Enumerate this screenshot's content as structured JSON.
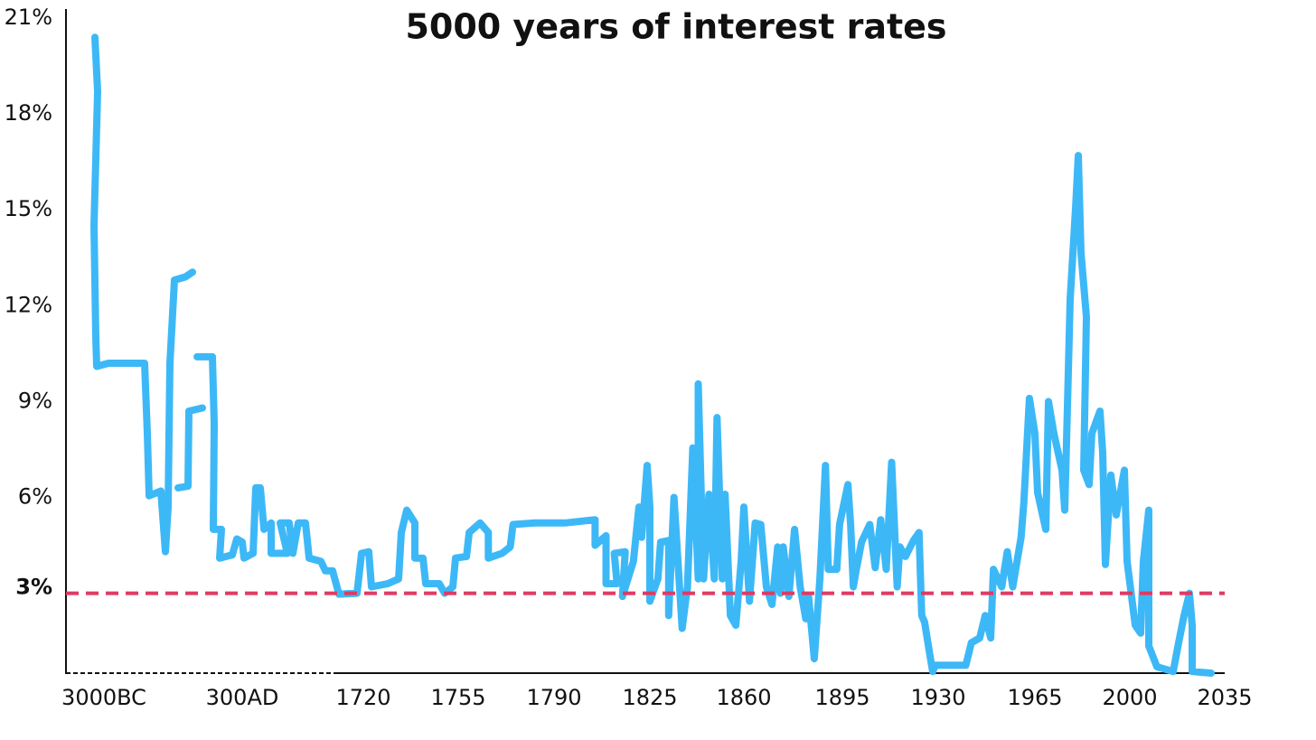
{
  "chart_data": {
    "type": "line",
    "title": "5000 years of interest rates",
    "x": [
      -3216,
      -3151,
      -3237,
      -3194,
      -3173,
      -2892,
      -2029,
      -1964,
      -1921,
      -1641,
      -1533,
      -1469,
      -1425,
      -1318,
      -1059,
      -886,
      null,
      -1231,
      -994,
      -972,
      -649,
      null,
      -778,
      -411,
      -368,
      -390,
      -196,
      -239,
      63,
      171,
      300,
      321,
      427,
      459,
      512,
      555,
      639,
      639,
      830,
      745,
      851,
      893,
      957,
      1042,
      1084,
      1222,
      1275,
      1360,
      1434,
      1646,
      1699,
      1722,
      1723,
      1729,
      1733,
      1734,
      1736,
      1739,
      1739,
      1742,
      1743,
      1748,
      1750,
      1753,
      1754,
      1758,
      1759,
      1763,
      1766,
      1766,
      1771,
      1774,
      1775,
      1783,
      1794,
      1805,
      1805,
      1809,
      1809,
      1813,
      1812,
      1816,
      1815,
      1819,
      1821,
      1822,
      1824,
      1825,
      1825,
      1828,
      1829,
      1832,
      1832,
      1834,
      1837,
      1839,
      1841,
      1843,
      1843,
      1845,
      1847,
      1849,
      1850,
      1852,
      1853,
      1855,
      1857,
      1859,
      1860,
      1862,
      1864,
      1866,
      1868,
      1870,
      1872,
      1873,
      1874,
      1876,
      1878,
      1880,
      1882,
      1883,
      1885,
      1887,
      1889,
      1890,
      1893,
      1894,
      1897,
      1898,
      1899,
      1900,
      1902,
      1905,
      1907,
      1909,
      1911,
      1913,
      1915,
      1916,
      1918,
      1921,
      1923,
      1924,
      1925,
      1927,
      1928,
      1929,
      1932,
      1940,
      1942,
      1945,
      1947,
      1949,
      1950,
      1953,
      1955,
      1957,
      1960,
      1961,
      1963,
      1965,
      1966,
      1969,
      1970,
      1972,
      1975,
      1976,
      1977,
      1978,
      1980,
      1981,
      1982,
      1984,
      1983,
      1985,
      1986,
      1989,
      1990,
      1991,
      1993,
      1995,
      1998,
      1999,
      2002,
      2004,
      2005,
      2007,
      2007,
      2010,
      2016,
      2018,
      2020,
      2022,
      2023,
      2023,
      2030
    ],
    "values": [
      20.4,
      18.7,
      14.5,
      11.0,
      10.1,
      10.2,
      10.2,
      8.0,
      6.05,
      6.2,
      4.3,
      5.7,
      10.2,
      12.8,
      12.9,
      13.05,
      null,
      6.3,
      6.35,
      8.7,
      8.8,
      null,
      10.4,
      10.4,
      8.3,
      5.0,
      5.0,
      4.1,
      4.2,
      4.7,
      4.6,
      4.1,
      4.25,
      6.3,
      6.3,
      5.0,
      5.2,
      4.25,
      4.25,
      5.2,
      5.2,
      4.25,
      5.2,
      5.2,
      4.1,
      4.0,
      3.7,
      3.7,
      2.97,
      3.0,
      4.25,
      4.3,
      3.2,
      3.3,
      3.45,
      4.9,
      5.6,
      5.2,
      4.1,
      4.1,
      3.3,
      3.3,
      3.0,
      3.2,
      4.1,
      4.15,
      4.9,
      5.2,
      4.9,
      4.1,
      4.25,
      4.45,
      5.15,
      5.2,
      5.2,
      5.3,
      4.5,
      4.8,
      3.3,
      3.3,
      4.25,
      4.3,
      2.9,
      4.0,
      5.7,
      4.75,
      7.0,
      5.7,
      2.75,
      3.45,
      4.6,
      4.65,
      2.3,
      6.0,
      1.9,
      3.2,
      7.55,
      3.45,
      9.55,
      3.45,
      6.1,
      3.45,
      8.5,
      3.45,
      6.1,
      2.3,
      2.0,
      4.0,
      5.7,
      2.75,
      5.2,
      5.15,
      3.2,
      2.65,
      4.45,
      3.0,
      4.45,
      2.9,
      5.0,
      3.2,
      2.2,
      2.9,
      0.95,
      3.45,
      7.0,
      3.75,
      3.75,
      5.15,
      6.4,
      5.15,
      3.2,
      3.7,
      4.6,
      5.15,
      3.8,
      5.3,
      3.75,
      7.1,
      3.2,
      4.45,
      4.15,
      4.65,
      4.9,
      2.3,
      2.1,
      1.05,
      0.55,
      0.75,
      0.75,
      0.75,
      1.45,
      1.6,
      2.3,
      1.6,
      3.75,
      3.2,
      4.3,
      3.2,
      4.75,
      5.85,
      9.1,
      8.0,
      6.15,
      5.0,
      9.0,
      8.0,
      6.85,
      5.6,
      8.85,
      12.2,
      15.05,
      16.7,
      13.65,
      11.65,
      6.85,
      6.4,
      8.0,
      8.7,
      7.4,
      3.9,
      6.7,
      5.45,
      6.85,
      4.0,
      2.0,
      1.75,
      4.0,
      5.6,
      1.35,
      0.7,
      0.55,
      1.45,
      2.3,
      3.0,
      2.0,
      0.55,
      0.5
    ],
    "color": "#3db8f7",
    "xlim": [
      -3900,
      2035
    ],
    "xticks": [
      {
        "value": -3000,
        "label": "3000BC"
      },
      {
        "value": 300,
        "label": "300AD"
      },
      1720,
      1755,
      1790,
      1825,
      1860,
      1895,
      1930,
      1965,
      2000,
      2035
    ],
    "ylim": [
      0.5,
      21
    ],
    "yticks": [
      {
        "value": 21,
        "label": "21%"
      },
      {
        "value": 18,
        "label": "18%"
      },
      {
        "value": 15,
        "label": "15%"
      },
      {
        "value": 12,
        "label": "12%"
      },
      {
        "value": 9,
        "label": "9%"
      },
      {
        "value": 6,
        "label": "6%"
      }
    ],
    "grid": false,
    "reference_line": {
      "value": 3,
      "label": "3%",
      "color": "#e03a62"
    }
  }
}
